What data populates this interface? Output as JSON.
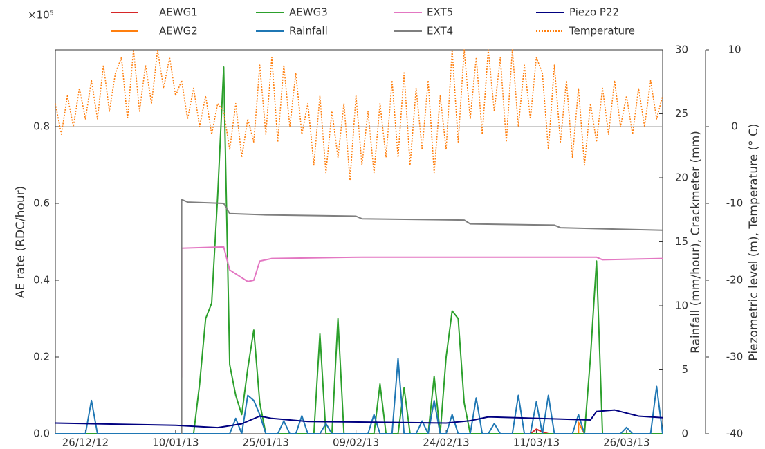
{
  "chart_data": {
    "type": "line",
    "y_multiplier": "×10⁵",
    "ylabel": "AE rate (RDC/hour)",
    "y2label": "Rainfall (mm/hour), Crackmeter (mm)",
    "y3label": "Piezometric level (m), Temperature (° C)",
    "xlim": [
      "2012-12-21",
      "2013-04-01"
    ],
    "xticks": [
      {
        "value": "2012-12-26",
        "label": "26/12/12"
      },
      {
        "value": "2013-01-10",
        "label": "10/01/13"
      },
      {
        "value": "2013-01-25",
        "label": "25/01/13"
      },
      {
        "value": "2013-02-09",
        "label": "09/02/13"
      },
      {
        "value": "2013-02-24",
        "label": "24/02/13"
      },
      {
        "value": "2013-03-11",
        "label": "11/03/13"
      },
      {
        "value": "2013-03-26",
        "label": "26/03/13"
      }
    ],
    "ylim": [
      0,
      1
    ],
    "yticks": [
      {
        "value": 0,
        "label": "0.0"
      },
      0.2,
      0.4,
      0.6,
      0.8
    ],
    "y2lim": [
      0,
      30
    ],
    "y2ticks": [
      0,
      5,
      10,
      15,
      20,
      25,
      30
    ],
    "y3lim": [
      -40,
      10
    ],
    "y3ticks": [
      -40,
      -30,
      -20,
      -10,
      0,
      10
    ],
    "reference_line": {
      "axis": "y3",
      "value": 0
    },
    "x": [
      "2012-12-21",
      "2012-12-22",
      "2012-12-23",
      "2012-12-24",
      "2012-12-25",
      "2012-12-26",
      "2012-12-27",
      "2012-12-28",
      "2012-12-29",
      "2012-12-30",
      "2012-12-31",
      "2013-01-01",
      "2013-01-02",
      "2013-01-03",
      "2013-01-04",
      "2013-01-05",
      "2013-01-06",
      "2013-01-07",
      "2013-01-08",
      "2013-01-09",
      "2013-01-10",
      "2013-01-11",
      "2013-01-12",
      "2013-01-13",
      "2013-01-14",
      "2013-01-15",
      "2013-01-16",
      "2013-01-17",
      "2013-01-18",
      "2013-01-19",
      "2013-01-20",
      "2013-01-21",
      "2013-01-22",
      "2013-01-23",
      "2013-01-24",
      "2013-01-25",
      "2013-01-26",
      "2013-01-27",
      "2013-01-28",
      "2013-01-29",
      "2013-01-30",
      "2013-01-31",
      "2013-02-01",
      "2013-02-02",
      "2013-02-03",
      "2013-02-04",
      "2013-02-05",
      "2013-02-06",
      "2013-02-07",
      "2013-02-08",
      "2013-02-09",
      "2013-02-10",
      "2013-02-11",
      "2013-02-12",
      "2013-02-13",
      "2013-02-14",
      "2013-02-15",
      "2013-02-16",
      "2013-02-17",
      "2013-02-18",
      "2013-02-19",
      "2013-02-20",
      "2013-02-21",
      "2013-02-22",
      "2013-02-23",
      "2013-02-24",
      "2013-02-25",
      "2013-02-26",
      "2013-02-27",
      "2013-02-28",
      "2013-03-01",
      "2013-03-02",
      "2013-03-03",
      "2013-03-04",
      "2013-03-05",
      "2013-03-06",
      "2013-03-07",
      "2013-03-08",
      "2013-03-09",
      "2013-03-10",
      "2013-03-11",
      "2013-03-12",
      "2013-03-13",
      "2013-03-14",
      "2013-03-15",
      "2013-03-16",
      "2013-03-17",
      "2013-03-18",
      "2013-03-19",
      "2013-03-20",
      "2013-03-21",
      "2013-03-22",
      "2013-03-23",
      "2013-03-24",
      "2013-03-25",
      "2013-03-26",
      "2013-03-27",
      "2013-03-28",
      "2013-03-29",
      "2013-03-30",
      "2013-03-31",
      "2013-04-01"
    ],
    "series": [
      {
        "name": "AEWG1",
        "color": "#d62728",
        "axis": "y",
        "x": [
          "2013-03-10",
          "2013-03-11",
          "2013-03-12",
          "2013-03-13"
        ],
        "values": [
          0,
          0.012,
          0.005,
          0
        ]
      },
      {
        "name": "AEWG2",
        "color": "#ff7f0e",
        "axis": "y",
        "x": [
          "2013-03-18",
          "2013-03-18",
          "2013-03-19"
        ],
        "values": [
          0,
          0.03,
          0
        ]
      },
      {
        "name": "AEWG3",
        "color": "#2ca02c",
        "axis": "y",
        "values": [
          0,
          0,
          0,
          0,
          0,
          0,
          0,
          0,
          0,
          0,
          0,
          0,
          0,
          0,
          0,
          0,
          0,
          0,
          0,
          0,
          0,
          0,
          0,
          0,
          0.13,
          0.3,
          0.34,
          0.62,
          0.955,
          0.18,
          0.1,
          0.05,
          0.17,
          0.27,
          0.08,
          0,
          0,
          0,
          0,
          0,
          0,
          0,
          0,
          0,
          0.26,
          0,
          0,
          0.3,
          0,
          0,
          0,
          0,
          0,
          0,
          0.13,
          0,
          0,
          0,
          0.12,
          0,
          0,
          0,
          0,
          0.15,
          0,
          0.2,
          0.32,
          0.3,
          0.08,
          0,
          0,
          0,
          0,
          0,
          0,
          0,
          0,
          0,
          0,
          0,
          0,
          0,
          0,
          0,
          0,
          0,
          0,
          0,
          0,
          0.2,
          0.45,
          0,
          0,
          0,
          0,
          0,
          0,
          0,
          0,
          0,
          0,
          0
        ]
      },
      {
        "name": "Rainfall",
        "color": "#1f77b4",
        "axis": "y2",
        "values": [
          0,
          0,
          0,
          0,
          0,
          0,
          2.6,
          0,
          0,
          0,
          0,
          0,
          0,
          0,
          0,
          0,
          0,
          0,
          0,
          0,
          0,
          0,
          0,
          0,
          0,
          0,
          0,
          0,
          0,
          0,
          1.2,
          0,
          3.0,
          2.6,
          1.5,
          0,
          0,
          0,
          1.0,
          0,
          0,
          1.4,
          0,
          0,
          0,
          0.8,
          0,
          0,
          0,
          0,
          0,
          0,
          0,
          1.5,
          0,
          0,
          0,
          5.9,
          0,
          0,
          0,
          1.0,
          0,
          2.6,
          0,
          0,
          1.5,
          0,
          0,
          0,
          2.8,
          0,
          0,
          0.8,
          0,
          0,
          0,
          3.0,
          0,
          0,
          2.5,
          0,
          3.0,
          0,
          0,
          0,
          0,
          1.5,
          0,
          0,
          0,
          0,
          0,
          0,
          0,
          0.5,
          0,
          0,
          0,
          0,
          3.7,
          0
        ]
      },
      {
        "name": "EXT5",
        "color": "#e377c2",
        "axis": "y2",
        "x": [
          "2013-01-11",
          "2013-01-11",
          "2013-01-18",
          "2013-01-19",
          "2013-01-20",
          "2013-01-22",
          "2013-01-23",
          "2013-01-24",
          "2013-01-26",
          "2013-02-10",
          "2013-03-21",
          "2013-03-22",
          "2013-04-01"
        ],
        "values": [
          4.4,
          14.5,
          14.6,
          12.8,
          12.5,
          11.9,
          12.0,
          13.5,
          13.7,
          13.8,
          13.8,
          13.6,
          13.7
        ]
      },
      {
        "name": "EXT4",
        "color": "#7f7f7f",
        "axis": "y2",
        "x": [
          "2013-01-11",
          "2013-01-11",
          "2013-01-12",
          "2013-01-18",
          "2013-01-19",
          "2013-01-25",
          "2013-02-09",
          "2013-02-10",
          "2013-02-27",
          "2013-02-28",
          "2013-03-14",
          "2013-03-15",
          "2013-04-01"
        ],
        "values": [
          0,
          18.3,
          18.1,
          18.0,
          17.2,
          17.1,
          17.0,
          16.8,
          16.7,
          16.4,
          16.3,
          16.1,
          15.9
        ]
      },
      {
        "name": "Piezo P22",
        "color": "#000080",
        "axis": "y3",
        "x": [
          "2012-12-21",
          "2013-01-10",
          "2013-01-17",
          "2013-01-21",
          "2013-01-24",
          "2013-01-26",
          "2013-02-01",
          "2013-02-24",
          "2013-02-28",
          "2013-03-03",
          "2013-03-20",
          "2013-03-21",
          "2013-03-24",
          "2013-03-28",
          "2013-04-01"
        ],
        "values": [
          -38.6,
          -38.9,
          -39.2,
          -38.7,
          -37.7,
          -38.0,
          -38.4,
          -38.6,
          -38.3,
          -37.8,
          -38.2,
          -37.1,
          -36.9,
          -37.7,
          -37.9
        ]
      },
      {
        "name": "Temperature",
        "color": "#ff7f0e",
        "axis": "y3",
        "dash": "dotted",
        "values": [
          3,
          -1,
          4,
          0,
          5,
          1,
          6,
          1,
          8,
          2,
          7,
          9,
          1,
          10,
          2,
          8,
          3,
          10,
          5,
          9,
          4,
          6,
          1,
          5,
          0,
          4,
          -1,
          3,
          2,
          -3,
          3,
          -4,
          1,
          -2,
          8,
          -1,
          9,
          -2,
          8,
          0,
          7,
          -1,
          3,
          -5,
          4,
          -6,
          2,
          -4,
          3,
          -7,
          4,
          -5,
          2,
          -6,
          3,
          -4,
          6,
          -4,
          7,
          -5,
          5,
          -3,
          6,
          -6,
          4,
          -3,
          10,
          -2,
          10,
          1,
          9,
          -1,
          10,
          2,
          9,
          -2,
          10,
          0,
          8,
          1,
          9,
          7,
          -3,
          8,
          -2,
          6,
          -4,
          5,
          -5,
          3,
          -2,
          5,
          -1,
          6,
          0,
          4,
          -1,
          5,
          0,
          6,
          1,
          4
        ]
      }
    ]
  }
}
